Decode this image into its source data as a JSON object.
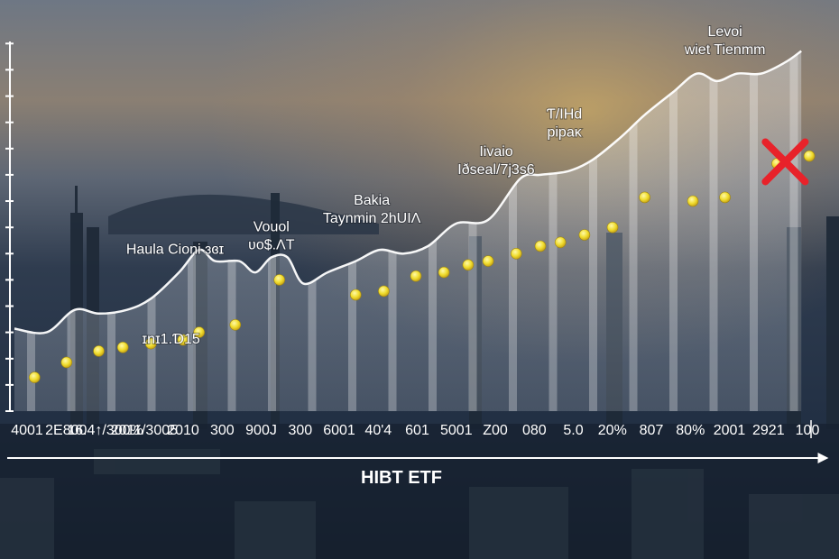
{
  "colors": {
    "line": "#ffffff",
    "area": "#dfe4ea",
    "points": "#f2e23a",
    "marker": "#e8222a",
    "axis": "#ffffff",
    "text": "#ffffff"
  },
  "icons": {
    "marker": "red-x-mark"
  },
  "chart_data": {
    "type": "area",
    "grid": false,
    "legend": "none",
    "title": "",
    "xlabel": "HIBT ETF",
    "ylabel": "",
    "ylim": [
      0,
      100
    ],
    "x_ticks": [
      "4001",
      "2E800",
      "16.4↑/300%",
      "2011/3005",
      "2010",
      "300",
      "900J",
      "300",
      "6001",
      "40'4",
      "601",
      "5001",
      "Z00",
      "080",
      "5.0",
      "20%",
      "807",
      "80%",
      "2001",
      "2921",
      "100"
    ],
    "series": [
      {
        "values": [
          {
            "x": 0,
            "y": 22
          },
          {
            "x": 0.8,
            "y": 21
          },
          {
            "x": 1.5,
            "y": 27
          },
          {
            "x": 2.1,
            "y": 26
          },
          {
            "x": 2.8,
            "y": 27
          },
          {
            "x": 3.4,
            "y": 30
          },
          {
            "x": 4.1,
            "y": 37
          },
          {
            "x": 4.6,
            "y": 43
          },
          {
            "x": 5.0,
            "y": 40
          },
          {
            "x": 5.6,
            "y": 40
          },
          {
            "x": 6.0,
            "y": 37
          },
          {
            "x": 6.4,
            "y": 41
          },
          {
            "x": 6.8,
            "y": 41
          },
          {
            "x": 7.2,
            "y": 34
          },
          {
            "x": 7.8,
            "y": 37
          },
          {
            "x": 8.5,
            "y": 40
          },
          {
            "x": 9.1,
            "y": 43
          },
          {
            "x": 9.7,
            "y": 42
          },
          {
            "x": 10.3,
            "y": 44
          },
          {
            "x": 11.0,
            "y": 50
          },
          {
            "x": 11.8,
            "y": 51
          },
          {
            "x": 12.6,
            "y": 62
          },
          {
            "x": 13.1,
            "y": 63
          },
          {
            "x": 13.8,
            "y": 64
          },
          {
            "x": 14.4,
            "y": 67
          },
          {
            "x": 15.1,
            "y": 73
          },
          {
            "x": 15.7,
            "y": 79
          },
          {
            "x": 16.4,
            "y": 85
          },
          {
            "x": 17.0,
            "y": 90
          },
          {
            "x": 17.5,
            "y": 88
          },
          {
            "x": 18.0,
            "y": 90
          },
          {
            "x": 18.6,
            "y": 90
          },
          {
            "x": 19.2,
            "y": 93
          },
          {
            "x": 19.6,
            "y": 96
          }
        ]
      },
      {
        "values": [
          {
            "x": 0.5,
            "y": 9
          },
          {
            "x": 1.3,
            "y": 13
          },
          {
            "x": 2.1,
            "y": 16
          },
          {
            "x": 2.7,
            "y": 17
          },
          {
            "x": 3.4,
            "y": 18
          },
          {
            "x": 4.2,
            "y": 19
          },
          {
            "x": 4.6,
            "y": 21
          },
          {
            "x": 5.5,
            "y": 23
          },
          {
            "x": 6.6,
            "y": 35
          },
          {
            "x": 8.5,
            "y": 31
          },
          {
            "x": 9.2,
            "y": 32
          },
          {
            "x": 10.0,
            "y": 36
          },
          {
            "x": 10.7,
            "y": 37
          },
          {
            "x": 11.3,
            "y": 39
          },
          {
            "x": 11.8,
            "y": 40
          },
          {
            "x": 12.5,
            "y": 42
          },
          {
            "x": 13.1,
            "y": 44
          },
          {
            "x": 13.6,
            "y": 45
          },
          {
            "x": 14.2,
            "y": 47
          },
          {
            "x": 14.9,
            "y": 49
          },
          {
            "x": 15.7,
            "y": 57
          },
          {
            "x": 16.9,
            "y": 56
          },
          {
            "x": 17.7,
            "y": 57
          },
          {
            "x": 19.0,
            "y": 66
          },
          {
            "x": 19.8,
            "y": 68
          }
        ]
      }
    ],
    "annotations": [
      {
        "lines": [
          "Levoi",
          "wiet Tienmm"
        ],
        "x": 17.7,
        "y": 100
      },
      {
        "lines": [
          "Ƭ/IHd",
          "pipaĸ"
        ],
        "x": 13.7,
        "y": 78
      },
      {
        "lines": [
          "Iivaio",
          "Iðseal/7j3s6"
        ],
        "x": 12.0,
        "y": 68
      },
      {
        "lines": [
          "Bakia",
          "Taynmin 2hUIΛ"
        ],
        "x": 8.9,
        "y": 55
      },
      {
        "lines": [
          "Vouol",
          "ʋo$.ΛT"
        ],
        "x": 6.4,
        "y": 48
      },
      {
        "lines": [
          "Haula Cioni ɜɞɪ"
        ],
        "x": 4.0,
        "y": 42
      },
      {
        "lines": [
          "ɪnɪ1.Ɗ15"
        ],
        "x": 3.9,
        "y": 18
      }
    ],
    "markers": [
      {
        "x": 19.2,
        "y": 66
      }
    ]
  }
}
